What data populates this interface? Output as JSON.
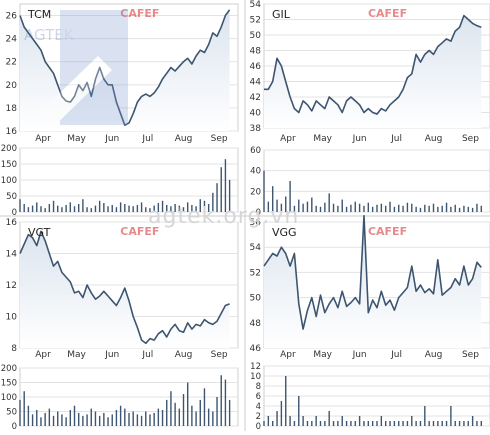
{
  "watermark": {
    "site": "agtek.org.vn",
    "corner": "AGTEK",
    "source": "CAFEF"
  },
  "colors": {
    "line": "#3d5570",
    "area_top": "#dbe4ee",
    "area_bottom": "#ffffff",
    "volume": "#3d5570",
    "grid": "#e3e3e3",
    "axis_text": "#333333",
    "wm_red": "#d42a2a"
  },
  "chart_data": [
    {
      "type": "area",
      "symbol": "TCM",
      "title": "TCM",
      "xticks": [
        "Apr",
        "May",
        "Jun",
        "Jul",
        "Aug",
        "Sep"
      ],
      "ylim": [
        16,
        27
      ],
      "yticks": [
        16,
        18,
        20,
        22,
        24,
        26
      ],
      "x": [
        0,
        2,
        4,
        6,
        8,
        10,
        12,
        14,
        16,
        18,
        20,
        22,
        24,
        26,
        28,
        30,
        32,
        34,
        36,
        38,
        40,
        42,
        44,
        46,
        48,
        50,
        52,
        54,
        56,
        58,
        60,
        62,
        64,
        66,
        68,
        70,
        72,
        74,
        76,
        78,
        80,
        82,
        84,
        86,
        88,
        90,
        92,
        94,
        96,
        98,
        100
      ],
      "y": [
        26,
        25,
        24.5,
        24,
        23.5,
        23,
        22,
        21.5,
        21,
        20,
        19,
        18.6,
        18.5,
        19,
        20,
        19.5,
        20.2,
        19,
        20.5,
        21.5,
        20.5,
        20,
        20,
        18.5,
        17.5,
        16.5,
        16.7,
        17.5,
        18.5,
        19,
        19.2,
        19,
        19.3,
        19.8,
        20.5,
        21,
        21.5,
        21.2,
        21.6,
        22,
        22.3,
        21.8,
        22.5,
        23,
        22.8,
        23.5,
        24.5,
        24.2,
        25,
        26,
        26.5
      ],
      "volume": {
        "ylim": [
          0,
          200
        ],
        "yticks": [
          0,
          50,
          100,
          150,
          200
        ],
        "values": [
          40,
          25,
          15,
          20,
          30,
          18,
          12,
          25,
          35,
          20,
          15,
          22,
          30,
          18,
          25,
          40,
          15,
          12,
          20,
          35,
          28,
          18,
          22,
          15,
          30,
          25,
          20,
          18,
          22,
          30,
          15,
          12,
          20,
          28,
          35,
          22,
          18,
          25,
          20,
          15,
          30,
          22,
          18,
          40,
          35,
          25,
          60,
          90,
          140,
          165,
          100
        ]
      }
    },
    {
      "type": "area",
      "symbol": "GIL",
      "title": "GIL",
      "xticks": [
        "Apr",
        "May",
        "Jun",
        "Jul",
        "Aug",
        "Sep"
      ],
      "ylim": [
        38,
        54
      ],
      "yticks": [
        38,
        40,
        42,
        44,
        46,
        48,
        50,
        52,
        54
      ],
      "x": [
        0,
        2,
        4,
        6,
        8,
        10,
        12,
        14,
        16,
        18,
        20,
        22,
        24,
        26,
        28,
        30,
        32,
        34,
        36,
        38,
        40,
        42,
        44,
        46,
        48,
        50,
        52,
        54,
        56,
        58,
        60,
        62,
        64,
        66,
        68,
        70,
        72,
        74,
        76,
        78,
        80,
        82,
        84,
        86,
        88,
        90,
        92,
        94,
        96,
        98,
        100
      ],
      "y": [
        43,
        43,
        44,
        47,
        46,
        44,
        42,
        40.5,
        40,
        41.5,
        41,
        40.2,
        41.5,
        41,
        40.5,
        42,
        41.5,
        41,
        40,
        41.5,
        42,
        41.5,
        41,
        40,
        40.5,
        40,
        39.8,
        40.5,
        40.2,
        41,
        41.5,
        42,
        43,
        44.5,
        45,
        47.5,
        46.5,
        47.5,
        48,
        47.5,
        48.5,
        49,
        49.5,
        49.2,
        50.5,
        51,
        52.5,
        52,
        51.5,
        51.2,
        51
      ],
      "volume": {
        "ylim": [
          0,
          60
        ],
        "yticks": [
          0,
          20,
          40,
          60
        ],
        "values": [
          40,
          10,
          25,
          12,
          8,
          15,
          30,
          6,
          12,
          8,
          10,
          14,
          6,
          5,
          9,
          18,
          8,
          6,
          12,
          5,
          7,
          10,
          8,
          6,
          9,
          5,
          7,
          8,
          6,
          10,
          5,
          7,
          6,
          9,
          8,
          5,
          4,
          7,
          6,
          8,
          5,
          6,
          9,
          5,
          7,
          4,
          6,
          5,
          4,
          8,
          6
        ]
      }
    },
    {
      "type": "area",
      "symbol": "VGT",
      "title": "VGT",
      "xticks": [
        "Apr",
        "May",
        "Jun",
        "Jul",
        "Aug",
        "Sep"
      ],
      "ylim": [
        8,
        16
      ],
      "yticks": [
        8,
        10,
        12,
        14,
        16
      ],
      "x": [
        0,
        2,
        4,
        6,
        8,
        10,
        12,
        14,
        16,
        18,
        20,
        22,
        24,
        26,
        28,
        30,
        32,
        34,
        36,
        38,
        40,
        42,
        44,
        46,
        48,
        50,
        52,
        54,
        56,
        58,
        60,
        62,
        64,
        66,
        68,
        70,
        72,
        74,
        76,
        78,
        80,
        82,
        84,
        86,
        88,
        90,
        92,
        94,
        96,
        98,
        100
      ],
      "y": [
        14,
        14.6,
        15.2,
        15,
        14.5,
        15.4,
        14.8,
        14,
        13.2,
        13.5,
        12.8,
        12.5,
        12.2,
        11.5,
        11.6,
        11.2,
        12,
        11.5,
        11.1,
        11.3,
        11.6,
        11.3,
        11,
        10.7,
        11.2,
        11.8,
        11,
        10,
        9.3,
        8.5,
        8.3,
        8.6,
        8.5,
        8.9,
        9.1,
        8.7,
        9.2,
        9.5,
        9.1,
        9,
        9.6,
        9.2,
        9.5,
        9.4,
        9.8,
        9.6,
        9.5,
        9.7,
        10.2,
        10.7,
        10.8
      ],
      "volume": {
        "ylim": [
          0,
          200
        ],
        "yticks": [
          0,
          50,
          100,
          150,
          200
        ],
        "values": [
          90,
          120,
          70,
          40,
          55,
          30,
          45,
          60,
          35,
          50,
          40,
          30,
          55,
          70,
          45,
          35,
          40,
          60,
          50,
          35,
          45,
          30,
          40,
          55,
          70,
          60,
          45,
          50,
          40,
          35,
          50,
          40,
          45,
          60,
          55,
          90,
          120,
          80,
          60,
          110,
          150,
          70,
          50,
          90,
          130,
          60,
          50,
          100,
          175,
          160,
          90
        ]
      }
    },
    {
      "type": "area",
      "symbol": "VGG",
      "title": "VGG",
      "xticks": [
        "Apr",
        "May",
        "Jun",
        "Jul",
        "Aug",
        "Sep"
      ],
      "ylim": [
        46,
        56
      ],
      "yticks": [
        46,
        48,
        50,
        52,
        54,
        56
      ],
      "x": [
        0,
        2,
        4,
        6,
        8,
        10,
        12,
        14,
        16,
        18,
        20,
        22,
        24,
        26,
        28,
        30,
        32,
        34,
        36,
        38,
        40,
        42,
        44,
        46,
        48,
        50,
        52,
        54,
        56,
        58,
        60,
        62,
        64,
        66,
        68,
        70,
        72,
        74,
        76,
        78,
        80,
        82,
        84,
        86,
        88,
        90,
        92,
        94,
        96,
        98,
        100
      ],
      "y": [
        52.5,
        53,
        53.5,
        53.3,
        54,
        53.5,
        52.5,
        53.5,
        49.5,
        47.5,
        49,
        50,
        48.5,
        50.2,
        48.8,
        49.5,
        50,
        49.2,
        50.5,
        49.3,
        49.6,
        50,
        49.5,
        56.5,
        48.8,
        49.8,
        49.2,
        50.5,
        49.4,
        49.8,
        49,
        50,
        50.4,
        50.8,
        52.5,
        50.5,
        51,
        50.4,
        50.7,
        50.3,
        53,
        50.2,
        50.5,
        50.8,
        51.5,
        51,
        52.5,
        51,
        51.5,
        52.8,
        52.4
      ],
      "volume": {
        "ylim": [
          0,
          12
        ],
        "yticks": [
          0,
          2,
          4,
          6,
          8,
          10,
          12
        ],
        "values": [
          1,
          2,
          1,
          3,
          5,
          10,
          2,
          1,
          6,
          2,
          1,
          1,
          2,
          1,
          1,
          3,
          1,
          1,
          2,
          1,
          1,
          1,
          2,
          1,
          1,
          1,
          1,
          2,
          1,
          1,
          1,
          1,
          1,
          1,
          2,
          1,
          1,
          4,
          1,
          1,
          1,
          1,
          1,
          4,
          1,
          1,
          1,
          1,
          2,
          1,
          1
        ]
      }
    }
  ]
}
